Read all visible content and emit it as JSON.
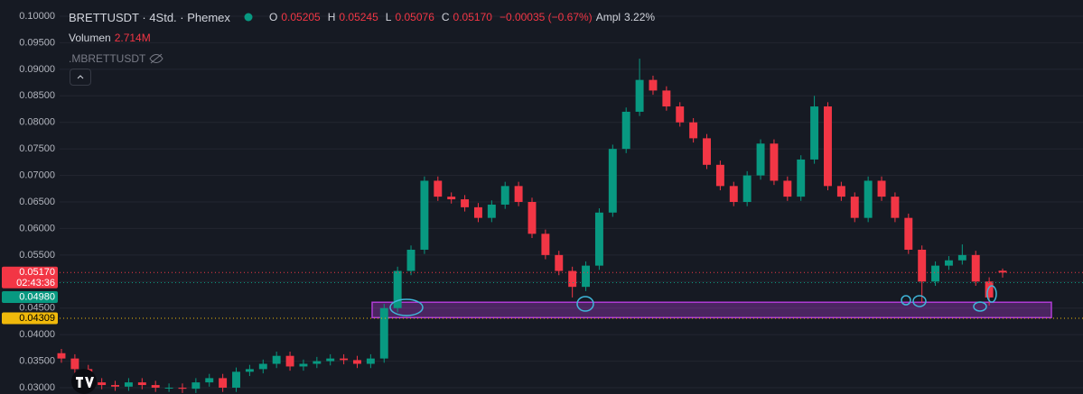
{
  "header": {
    "title": "BRETTUSDT · 4Std. · Phemex",
    "ohlc": [
      {
        "label": "O",
        "value": "0.05205"
      },
      {
        "label": "H",
        "value": "0.05245"
      },
      {
        "label": "L",
        "value": "0.05076"
      },
      {
        "label": "C",
        "value": "0.05170"
      }
    ],
    "change": "−0.00035 (−0.67%)",
    "ampl_label": "Ampl",
    "ampl": "3.22%",
    "volume_label": "Volumen",
    "volume": "2.714M",
    "indicator": ".MBRETTUSDT"
  },
  "chart_data": {
    "type": "candlestick",
    "up_color": "#089981",
    "down_color": "#f23645",
    "ylim": [
      0.02881,
      0.10306
    ],
    "yticks": [
      {
        "value": 0.1,
        "label": "0.10000"
      },
      {
        "value": 0.095,
        "label": "0.09500"
      },
      {
        "value": 0.09,
        "label": "0.09000"
      },
      {
        "value": 0.085,
        "label": "0.08500"
      },
      {
        "value": 0.08,
        "label": "0.08000"
      },
      {
        "value": 0.075,
        "label": "0.07500"
      },
      {
        "value": 0.07,
        "label": "0.07000"
      },
      {
        "value": 0.065,
        "label": "0.06500"
      },
      {
        "value": 0.06,
        "label": "0.06000"
      },
      {
        "value": 0.055,
        "label": "0.05500"
      },
      {
        "value": 0.05,
        "label": "0.05000"
      },
      {
        "value": 0.045,
        "label": "0.04500"
      },
      {
        "value": 0.04,
        "label": "0.04000"
      },
      {
        "value": 0.035,
        "label": "0.03500"
      },
      {
        "value": 0.03,
        "label": "0.03000"
      }
    ],
    "grid": true,
    "open": [
      0.0365,
      0.0355,
      0.0335,
      0.031,
      0.0305,
      0.0302,
      0.031,
      0.0305,
      0.03,
      0.03,
      0.0298,
      0.031,
      0.0318,
      0.03,
      0.033,
      0.0335,
      0.0345,
      0.036,
      0.034,
      0.0345,
      0.035,
      0.0355,
      0.0352,
      0.0345,
      0.0355,
      0.045,
      0.052,
      0.056,
      0.069,
      0.066,
      0.0655,
      0.064,
      0.062,
      0.0645,
      0.068,
      0.065,
      0.059,
      0.055,
      0.052,
      0.049,
      0.053,
      0.063,
      0.075,
      0.082,
      0.088,
      0.086,
      0.083,
      0.08,
      0.077,
      0.072,
      0.068,
      0.065,
      0.07,
      0.076,
      0.069,
      0.066,
      0.073,
      0.083,
      0.068,
      0.066,
      0.062,
      0.069,
      0.066,
      0.062,
      0.056,
      0.05,
      0.053,
      0.054,
      0.055,
      0.05,
      0.05205
    ],
    "high": [
      0.0373,
      0.0363,
      0.0343,
      0.0318,
      0.0313,
      0.0318,
      0.0318,
      0.0313,
      0.0308,
      0.0308,
      0.0318,
      0.0326,
      0.0326,
      0.0338,
      0.0343,
      0.0353,
      0.0368,
      0.0368,
      0.0353,
      0.0358,
      0.0363,
      0.0363,
      0.036,
      0.0363,
      0.0458,
      0.0528,
      0.0568,
      0.0698,
      0.0698,
      0.0668,
      0.0663,
      0.0648,
      0.0653,
      0.0688,
      0.0688,
      0.0658,
      0.0598,
      0.0558,
      0.0528,
      0.0538,
      0.0638,
      0.0758,
      0.0828,
      0.092,
      0.0888,
      0.0868,
      0.0838,
      0.0808,
      0.0778,
      0.0728,
      0.0688,
      0.0708,
      0.0768,
      0.0768,
      0.0698,
      0.0738,
      0.085,
      0.0838,
      0.0688,
      0.0668,
      0.0698,
      0.0698,
      0.0668,
      0.0628,
      0.0568,
      0.0538,
      0.0548,
      0.057,
      0.0558,
      0.0508,
      0.05245
    ],
    "low": [
      0.0347,
      0.0327,
      0.0302,
      0.0297,
      0.0294,
      0.0294,
      0.0297,
      0.0292,
      0.0292,
      0.029,
      0.029,
      0.0302,
      0.0292,
      0.0292,
      0.0322,
      0.0327,
      0.0337,
      0.0332,
      0.0332,
      0.0337,
      0.0342,
      0.0344,
      0.0337,
      0.0337,
      0.0347,
      0.0442,
      0.0512,
      0.0552,
      0.0652,
      0.0647,
      0.0632,
      0.0612,
      0.0612,
      0.0637,
      0.0642,
      0.0582,
      0.0542,
      0.0512,
      0.047,
      0.0482,
      0.0522,
      0.0622,
      0.0742,
      0.0812,
      0.0852,
      0.0822,
      0.0792,
      0.0762,
      0.0712,
      0.0672,
      0.0642,
      0.0642,
      0.0692,
      0.0682,
      0.0652,
      0.0652,
      0.0722,
      0.0672,
      0.0652,
      0.0612,
      0.0612,
      0.0652,
      0.0612,
      0.0552,
      0.046,
      0.0492,
      0.0522,
      0.0532,
      0.0492,
      0.0455,
      0.05076
    ],
    "close": [
      0.0355,
      0.0335,
      0.031,
      0.0305,
      0.0302,
      0.031,
      0.0305,
      0.03,
      0.03,
      0.0298,
      0.031,
      0.0318,
      0.03,
      0.033,
      0.0335,
      0.0345,
      0.036,
      0.034,
      0.0345,
      0.035,
      0.0355,
      0.0352,
      0.0345,
      0.0355,
      0.045,
      0.052,
      0.056,
      0.069,
      0.066,
      0.0655,
      0.064,
      0.062,
      0.0645,
      0.068,
      0.065,
      0.059,
      0.055,
      0.052,
      0.049,
      0.053,
      0.063,
      0.075,
      0.082,
      0.088,
      0.086,
      0.083,
      0.08,
      0.077,
      0.072,
      0.068,
      0.065,
      0.07,
      0.076,
      0.069,
      0.066,
      0.073,
      0.083,
      0.068,
      0.066,
      0.062,
      0.069,
      0.066,
      0.062,
      0.056,
      0.05,
      0.053,
      0.054,
      0.055,
      0.05,
      0.047,
      0.0517
    ],
    "price_lines": [
      {
        "value": 0.0517,
        "label": "0.05170",
        "sublabel": "02:43:36",
        "color": "#f23645"
      },
      {
        "value": 0.0498,
        "label": "0.04980",
        "color": "#089981"
      },
      {
        "value": 0.04309,
        "label": "0.04309",
        "color": "#f0b90b"
      }
    ],
    "zone": {
      "from": 0.0432,
      "to": 0.0461,
      "color": "#b03cd6"
    }
  }
}
